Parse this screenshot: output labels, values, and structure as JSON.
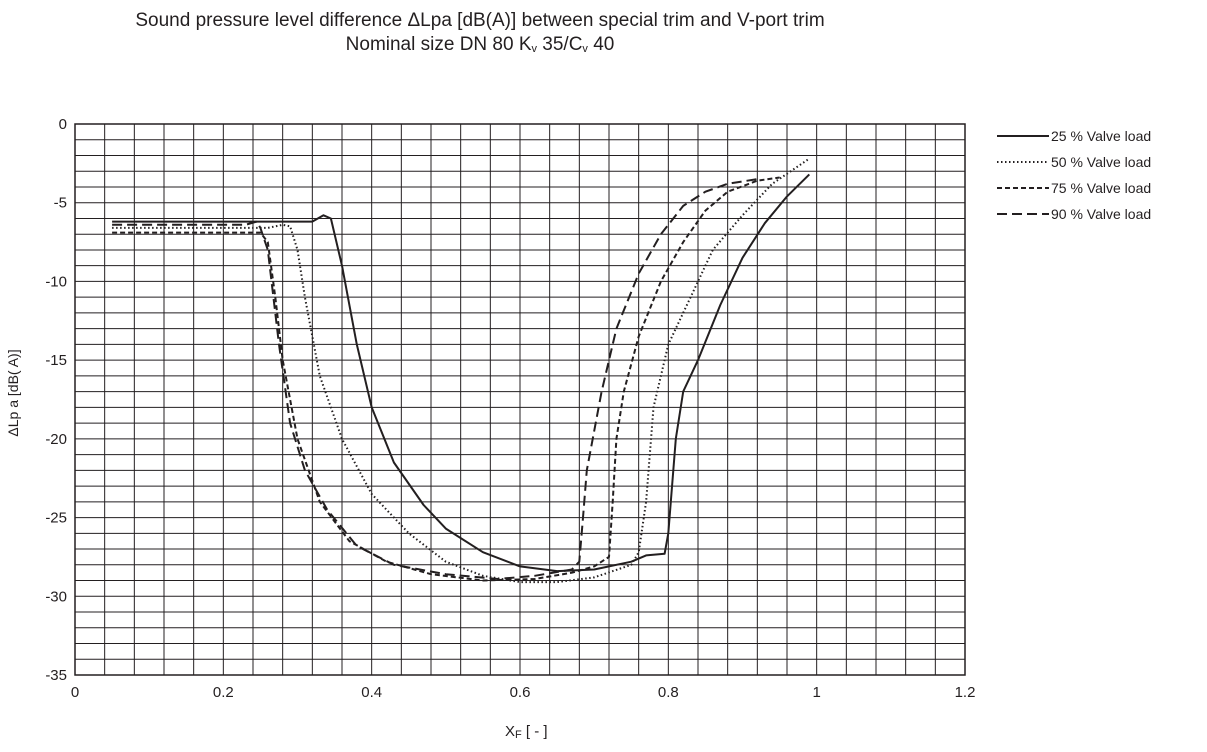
{
  "chart_data": {
    "type": "line",
    "title": "Sound pressure level difference ΔLpa [dB(A)] between special trim and V-port trim",
    "subtitle": "Nominal size DN 80 K",
    "subtitle_parts": {
      "kv_sub": "v",
      "mid": " 35/C",
      "cv_sub": "v",
      "end": " 40"
    },
    "xlabel": "X",
    "xlabel_sub": "F",
    "xlabel_end": " [ - ]",
    "ylabel": "ΔLp a [dB( A)]",
    "xlim": [
      0,
      1.2
    ],
    "ylim": [
      -35,
      0
    ],
    "x_ticks": [
      "0",
      "0.2",
      "0.4",
      "0.6",
      "0.8",
      "1",
      "1.2"
    ],
    "y_ticks": [
      "0",
      "-5",
      "-10",
      "-15",
      "-20",
      "-25",
      "-30",
      "-35"
    ],
    "grid": true,
    "legend_position": "right",
    "series": [
      {
        "name": "25 % Valve load",
        "dash": "solid",
        "points": [
          [
            0.05,
            -6.2
          ],
          [
            0.32,
            -6.2
          ],
          [
            0.335,
            -5.8
          ],
          [
            0.345,
            -6.0
          ],
          [
            0.36,
            -9
          ],
          [
            0.38,
            -14
          ],
          [
            0.4,
            -18
          ],
          [
            0.43,
            -21.5
          ],
          [
            0.47,
            -24.2
          ],
          [
            0.5,
            -25.7
          ],
          [
            0.55,
            -27.2
          ],
          [
            0.6,
            -28.1
          ],
          [
            0.65,
            -28.4
          ],
          [
            0.7,
            -28.3
          ],
          [
            0.75,
            -27.8
          ],
          [
            0.77,
            -27.4
          ],
          [
            0.795,
            -27.3
          ],
          [
            0.8,
            -26
          ],
          [
            0.81,
            -20
          ],
          [
            0.82,
            -17
          ],
          [
            0.84,
            -15
          ],
          [
            0.87,
            -11.5
          ],
          [
            0.9,
            -8.5
          ],
          [
            0.93,
            -6.3
          ],
          [
            0.96,
            -4.6
          ],
          [
            0.99,
            -3.2
          ]
        ]
      },
      {
        "name": "50 % Valve load",
        "dash": "dotted",
        "points": [
          [
            0.05,
            -6.6
          ],
          [
            0.26,
            -6.6
          ],
          [
            0.28,
            -6.4
          ],
          [
            0.29,
            -6.5
          ],
          [
            0.3,
            -8
          ],
          [
            0.31,
            -11
          ],
          [
            0.33,
            -16
          ],
          [
            0.36,
            -20
          ],
          [
            0.4,
            -23.5
          ],
          [
            0.45,
            -26
          ],
          [
            0.5,
            -27.8
          ],
          [
            0.55,
            -28.7
          ],
          [
            0.6,
            -29.1
          ],
          [
            0.65,
            -29.1
          ],
          [
            0.7,
            -28.8
          ],
          [
            0.75,
            -28.0
          ],
          [
            0.76,
            -27.2
          ],
          [
            0.77,
            -24
          ],
          [
            0.78,
            -18
          ],
          [
            0.8,
            -14
          ],
          [
            0.83,
            -11
          ],
          [
            0.86,
            -8
          ],
          [
            0.9,
            -5.8
          ],
          [
            0.94,
            -3.8
          ],
          [
            0.99,
            -2.2
          ]
        ]
      },
      {
        "name": "75 % Valve load",
        "dash": "dashed",
        "points": [
          [
            0.05,
            -6.9
          ],
          [
            0.25,
            -6.9
          ],
          [
            0.26,
            -7.5
          ],
          [
            0.27,
            -11
          ],
          [
            0.28,
            -15
          ],
          [
            0.3,
            -20
          ],
          [
            0.33,
            -24
          ],
          [
            0.37,
            -26.5
          ],
          [
            0.42,
            -27.8
          ],
          [
            0.48,
            -28.6
          ],
          [
            0.55,
            -29.0
          ],
          [
            0.62,
            -28.9
          ],
          [
            0.67,
            -28.5
          ],
          [
            0.7,
            -28.1
          ],
          [
            0.72,
            -27.5
          ],
          [
            0.725,
            -24
          ],
          [
            0.73,
            -20
          ],
          [
            0.74,
            -17
          ],
          [
            0.76,
            -13.5
          ],
          [
            0.79,
            -10
          ],
          [
            0.82,
            -7.5
          ],
          [
            0.85,
            -5.5
          ],
          [
            0.88,
            -4.3
          ],
          [
            0.92,
            -3.6
          ],
          [
            0.95,
            -3.4
          ]
        ]
      },
      {
        "name": "90 % Valve load",
        "dash": "longdash",
        "points": [
          [
            0.05,
            -6.4
          ],
          [
            0.23,
            -6.4
          ],
          [
            0.245,
            -6.2
          ],
          [
            0.25,
            -6.6
          ],
          [
            0.26,
            -8
          ],
          [
            0.275,
            -14
          ],
          [
            0.29,
            -19
          ],
          [
            0.31,
            -22
          ],
          [
            0.34,
            -24.5
          ],
          [
            0.38,
            -26.8
          ],
          [
            0.43,
            -28.0
          ],
          [
            0.5,
            -28.6
          ],
          [
            0.57,
            -28.9
          ],
          [
            0.62,
            -28.7
          ],
          [
            0.67,
            -28.3
          ],
          [
            0.68,
            -27.8
          ],
          [
            0.685,
            -25
          ],
          [
            0.69,
            -22
          ],
          [
            0.71,
            -17
          ],
          [
            0.73,
            -13
          ],
          [
            0.76,
            -9.5
          ],
          [
            0.79,
            -7
          ],
          [
            0.82,
            -5.2
          ],
          [
            0.85,
            -4.3
          ],
          [
            0.88,
            -3.8
          ],
          [
            0.92,
            -3.5
          ]
        ]
      }
    ]
  }
}
